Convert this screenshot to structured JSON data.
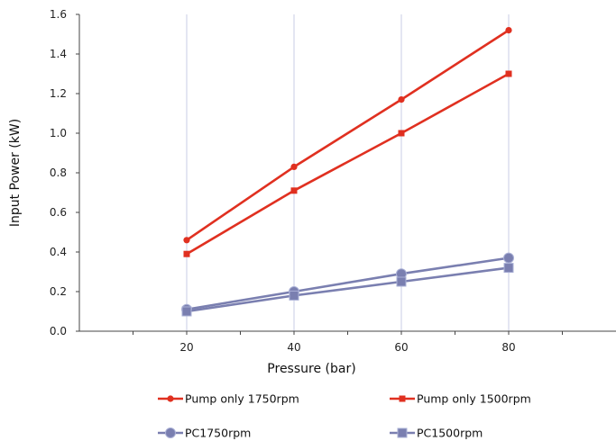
{
  "chart_data": {
    "type": "line",
    "title": "",
    "xlabel": "Pressure (bar)",
    "ylabel": "Input Power (kW)",
    "x": [
      20,
      40,
      60,
      80
    ],
    "xlim": [
      0,
      100
    ],
    "ylim": [
      0,
      1.6
    ],
    "x_ticks": [
      "20",
      "40",
      "60",
      "80"
    ],
    "y_ticks": [
      "0.0",
      "0.2",
      "0.4",
      "0.6",
      "0.8",
      "1.0",
      "1.2",
      "1.4",
      "1.6"
    ],
    "grid": "vertical",
    "legend_position": "bottom",
    "series": [
      {
        "name": "Pump only 1750rpm",
        "values": [
          0.46,
          0.83,
          1.17,
          1.52
        ],
        "color": "#e03020",
        "marker": "circle"
      },
      {
        "name": "Pump only 1500rpm",
        "values": [
          0.39,
          0.71,
          1.0,
          1.3
        ],
        "color": "#e03020",
        "marker": "square"
      },
      {
        "name": "PC1750rpm",
        "values": [
          0.11,
          0.2,
          0.29,
          0.37
        ],
        "color": "#7a7fb0",
        "marker": "circle"
      },
      {
        "name": "PC1500rpm",
        "values": [
          0.1,
          0.18,
          0.25,
          0.32
        ],
        "color": "#7a7fb0",
        "marker": "square"
      }
    ]
  }
}
